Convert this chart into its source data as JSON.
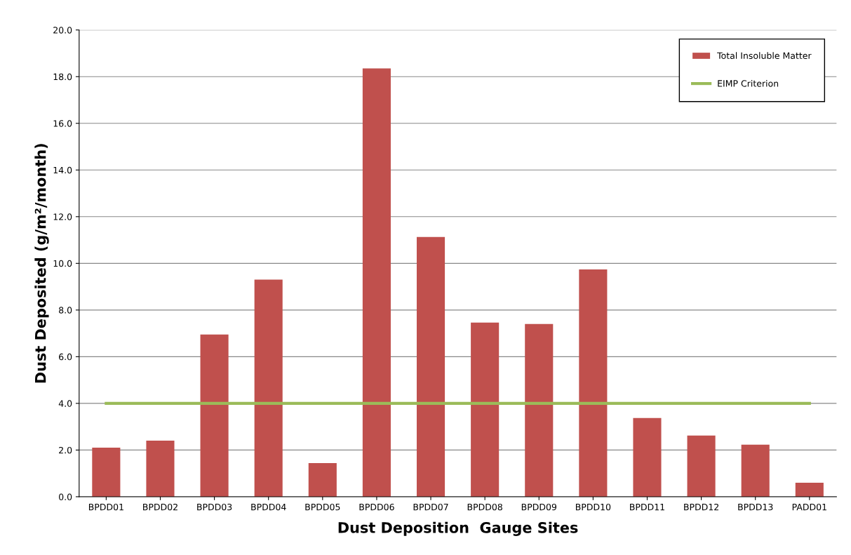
{
  "chart_data": {
    "type": "bar",
    "xlabel": "Dust Deposition  Gauge Sites",
    "ylabel": "Dust Deposited (g/m²/month)",
    "categories": [
      "BPDD01",
      "BPDD02",
      "BPDD03",
      "BPDD04",
      "BPDD05",
      "BPDD06",
      "BPDD07",
      "BPDD08",
      "BPDD09",
      "BPDD10",
      "BPDD11",
      "BPDD12",
      "BPDD13",
      "PADD01"
    ],
    "series": [
      {
        "name": "Total Insoluble Matter",
        "color": "#c0504d",
        "values": [
          2.1,
          2.4,
          6.95,
          9.3,
          1.44,
          18.35,
          11.13,
          7.46,
          7.4,
          9.74,
          3.37,
          2.62,
          2.23,
          0.6
        ]
      },
      {
        "name": "EIMP Criterion",
        "type": "line",
        "color": "#9bbb59",
        "values": [
          4.0,
          4.0,
          4.0,
          4.0,
          4.0,
          4.0,
          4.0,
          4.0,
          4.0,
          4.0,
          4.0,
          4.0,
          4.0,
          4.0
        ]
      }
    ],
    "ylim": [
      0,
      20
    ],
    "yticks": [
      {
        "value": 0,
        "label": "0.0"
      },
      {
        "value": 2,
        "label": "2.0"
      },
      {
        "value": 4,
        "label": "4.0"
      },
      {
        "value": 6,
        "label": "6.0"
      },
      {
        "value": 8,
        "label": "8.0"
      },
      {
        "value": 10,
        "label": "10.0"
      },
      {
        "value": 12,
        "label": "12.0"
      },
      {
        "value": 14,
        "label": "14.0"
      },
      {
        "value": 16,
        "label": "16.0"
      },
      {
        "value": 18,
        "label": "18.0"
      },
      {
        "value": 20,
        "label": "20.0"
      }
    ],
    "grid": "y",
    "legend": "top right"
  }
}
